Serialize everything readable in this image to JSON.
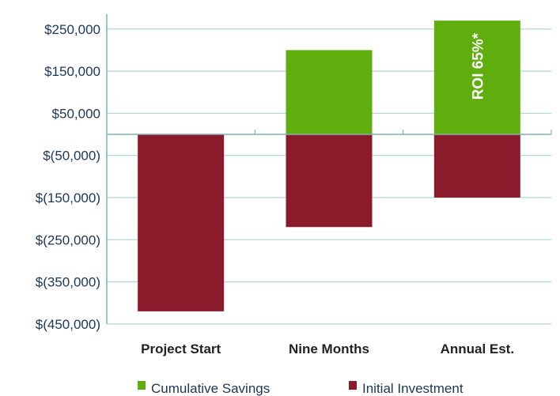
{
  "chart_data": {
    "type": "bar",
    "stacked": true,
    "categories": [
      "Project Start",
      "Nine Months",
      "Annual Est."
    ],
    "series": [
      {
        "name": "Cumulative Savings",
        "color": "#5fae0e",
        "values": [
          0,
          200000,
          270000
        ]
      },
      {
        "name": "Initial Investment",
        "color": "#8b1a2b",
        "values": [
          -420000,
          -220000,
          -150000
        ]
      }
    ],
    "yticks": [
      250000,
      150000,
      50000,
      -50000,
      -150000,
      -250000,
      -350000,
      -450000
    ],
    "ytick_labels": [
      "$250,000",
      "$150,000",
      "$50,000",
      "$(50,000)",
      "$(150,000)",
      "$(250,000)",
      "$(350,000)",
      "$(450,000)"
    ],
    "ylim": [
      -450000,
      250000
    ],
    "grid": true,
    "legend": "bottom",
    "annotation": {
      "text": "ROI 65%*",
      "category": "Annual Est.",
      "series": "Cumulative Savings"
    },
    "title": "",
    "xlabel": "",
    "ylabel": ""
  }
}
